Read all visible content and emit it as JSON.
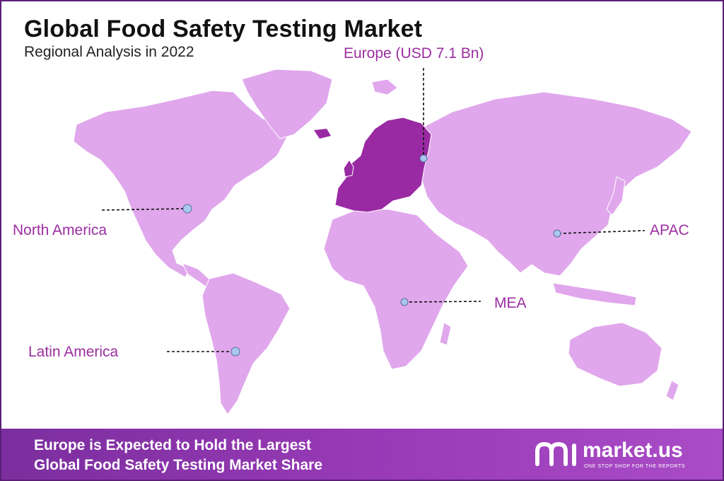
{
  "title": "Global Food Safety Testing Market",
  "subtitle": "Regional Analysis in 2022",
  "colors": {
    "land": "#e0a7ec",
    "highlight": "#9a2aa3",
    "label": "#9b2ea0",
    "marker": "#a9c8ec",
    "footer": "#8a35ad"
  },
  "regions": {
    "europe": "Europe (USD 7.1 Bn)",
    "north_america": "North America",
    "apac": "APAC",
    "mea": "MEA",
    "latin_america": "Latin America"
  },
  "footer": {
    "line1": "Europe is Expected to Hold the Largest",
    "line2": "Global Food Safety Testing Market Share"
  },
  "brand": {
    "name": "market.us",
    "tagline": "ONE STOP SHOP FOR THE REPORTS"
  }
}
